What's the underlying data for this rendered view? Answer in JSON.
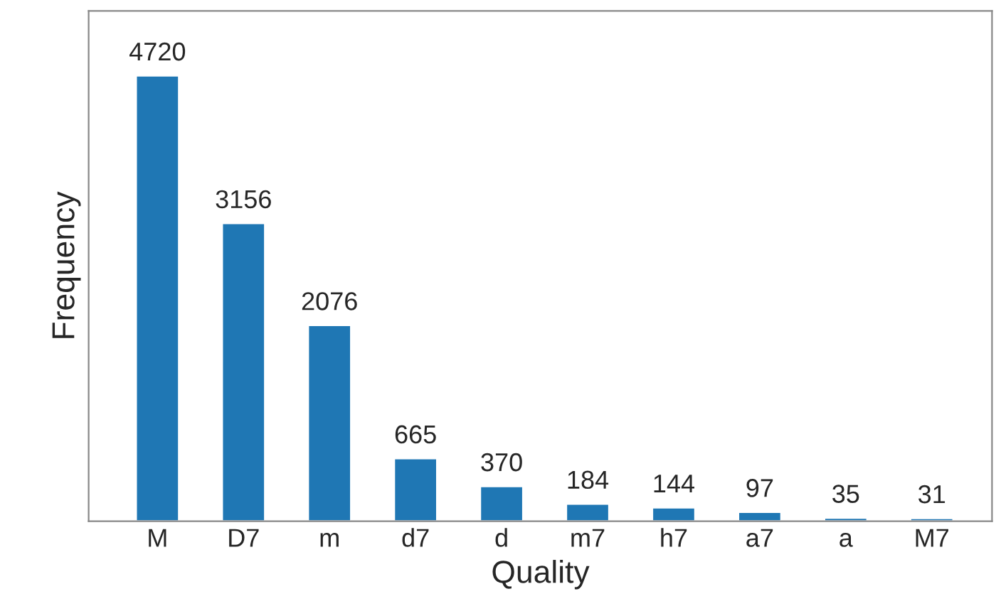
{
  "chart_data": {
    "type": "bar",
    "xlabel": "Quality",
    "ylabel": "Frequency",
    "categories": [
      "M",
      "D7",
      "m",
      "d7",
      "d",
      "m7",
      "h7",
      "a7",
      "a",
      "M7"
    ],
    "values": [
      4720,
      3156,
      2076,
      665,
      370,
      184,
      144,
      97,
      35,
      31
    ],
    "color": "#1f77b4",
    "data_labels": true,
    "tick_labels": "x",
    "grid": false,
    "legend": false
  }
}
